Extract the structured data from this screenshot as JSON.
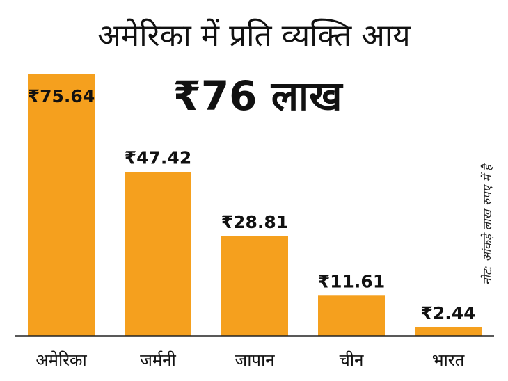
{
  "title": "अमेरिका में प्रति व्यक्ति आय",
  "headline": "₹76 लाख",
  "note": "नोट: आंकड़े लाख रुपए में है",
  "colors": {
    "bar": "#f5a01e",
    "baseline": "#222222",
    "text": "#111111"
  },
  "chart_data": {
    "type": "bar",
    "categories": [
      "अमेरिका",
      "जर्मनी",
      "जापान",
      "चीन",
      "भारत"
    ],
    "values": [
      75.64,
      47.42,
      28.81,
      11.61,
      2.44
    ],
    "value_labels": [
      "₹75.64",
      "₹47.42",
      "₹28.81",
      "₹11.61",
      "₹2.44"
    ],
    "ylim": [
      0,
      75.64
    ],
    "grid": false,
    "legend": "none"
  }
}
